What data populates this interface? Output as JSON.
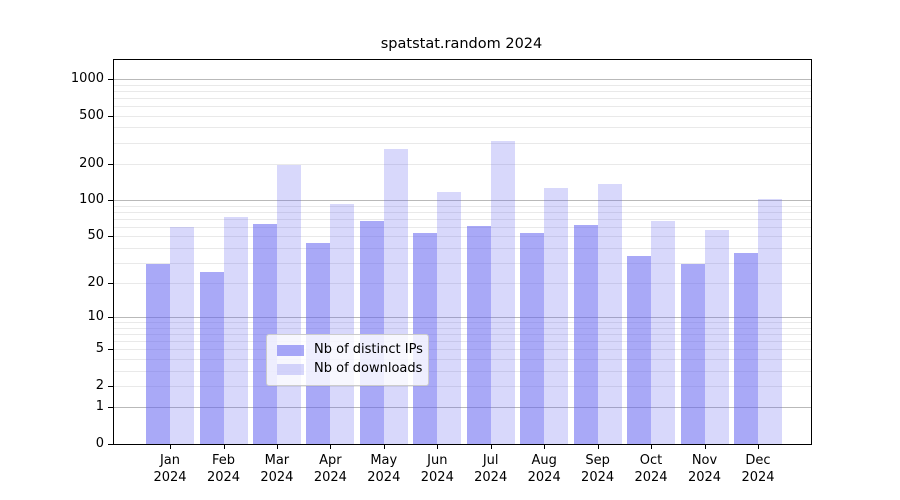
{
  "title": "spatstat.random 2024",
  "chart_data": {
    "type": "bar",
    "title": "spatstat.random 2024",
    "yscale": "log1p",
    "grid": true,
    "legend_position": "bottom-center",
    "categories": [
      "Jan",
      "Feb",
      "Mar",
      "Apr",
      "May",
      "Jun",
      "Jul",
      "Aug",
      "Sep",
      "Oct",
      "Nov",
      "Dec"
    ],
    "year": "2024",
    "series": [
      {
        "name": "Nb of distinct IPs",
        "values": [
          29,
          25,
          63,
          44,
          67,
          53,
          61,
          53,
          62,
          34,
          29,
          36
        ]
      },
      {
        "name": "Nb of downloads",
        "values": [
          60,
          72,
          197,
          93,
          265,
          117,
          310,
          126,
          136,
          67,
          56,
          102
        ]
      }
    ],
    "y_ticks": [
      0,
      1,
      2,
      5,
      10,
      20,
      50,
      100,
      200,
      500,
      1000
    ],
    "ylim": [
      0,
      1430
    ],
    "colors": {
      "distinct_ips": "rgba(98,98,240,0.55)",
      "downloads": "rgba(98,98,240,0.25)",
      "major_grid": "#b9b9b9",
      "minor_grid": "#e9e9e9"
    }
  }
}
